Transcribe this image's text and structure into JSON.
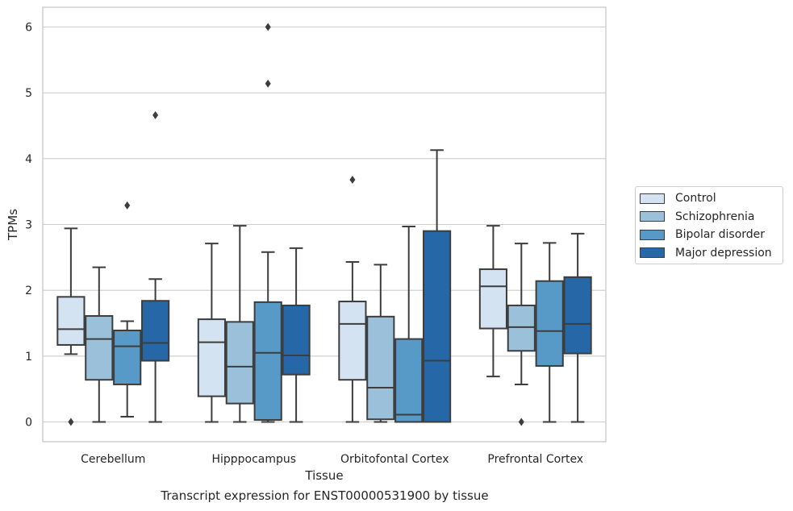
{
  "chart_data": {
    "type": "boxplot",
    "caption": "Transcript expression for ENST00000531900 by tissue",
    "xlabel": "Tissue",
    "ylabel": "TPMs",
    "ylim": [
      -0.3,
      6.3
    ],
    "yticks": [
      0,
      1,
      2,
      3,
      4,
      5,
      6
    ],
    "grid": true,
    "legend_position": "right",
    "categories": [
      "Cerebellum",
      "Hipppocampus",
      "Orbitofontal Cortex",
      "Prefrontal Cortex"
    ],
    "series": [
      {
        "name": "Control",
        "color": "#d4e3f2",
        "boxes": [
          {
            "whislo": 1.03,
            "q1": 1.17,
            "med": 1.41,
            "q3": 1.9,
            "whishi": 2.94,
            "fliers": [
              0.0
            ]
          },
          {
            "whislo": 0.0,
            "q1": 0.39,
            "med": 1.21,
            "q3": 1.56,
            "whishi": 2.71,
            "fliers": []
          },
          {
            "whislo": 0.0,
            "q1": 0.64,
            "med": 1.49,
            "q3": 1.83,
            "whishi": 2.43,
            "fliers": [
              3.68
            ]
          },
          {
            "whislo": 0.69,
            "q1": 1.42,
            "med": 2.06,
            "q3": 2.32,
            "whishi": 2.98,
            "fliers": []
          }
        ]
      },
      {
        "name": "Schizophrenia",
        "color": "#9ac0da",
        "boxes": [
          {
            "whislo": 0.0,
            "q1": 0.64,
            "med": 1.26,
            "q3": 1.61,
            "whishi": 2.35,
            "fliers": []
          },
          {
            "whislo": 0.0,
            "q1": 0.28,
            "med": 0.84,
            "q3": 1.52,
            "whishi": 2.98,
            "fliers": []
          },
          {
            "whislo": 0.0,
            "q1": 0.04,
            "med": 0.52,
            "q3": 1.6,
            "whishi": 2.39,
            "fliers": []
          },
          {
            "whislo": 0.57,
            "q1": 1.08,
            "med": 1.44,
            "q3": 1.77,
            "whishi": 2.71,
            "fliers": [
              0.0
            ]
          }
        ]
      },
      {
        "name": "Bipolar disorder",
        "color": "#5799c7",
        "boxes": [
          {
            "whislo": 0.08,
            "q1": 0.57,
            "med": 1.15,
            "q3": 1.39,
            "whishi": 1.53,
            "fliers": [
              3.29
            ]
          },
          {
            "whislo": 0.0,
            "q1": 0.03,
            "med": 1.05,
            "q3": 1.82,
            "whishi": 2.58,
            "fliers": [
              6.0,
              5.14
            ]
          },
          {
            "whislo": 0.0,
            "q1": 0.0,
            "med": 0.11,
            "q3": 1.26,
            "whishi": 2.97,
            "fliers": []
          },
          {
            "whislo": 0.0,
            "q1": 0.85,
            "med": 1.38,
            "q3": 2.14,
            "whishi": 2.72,
            "fliers": []
          }
        ]
      },
      {
        "name": "Major depression",
        "color": "#2668a7",
        "boxes": [
          {
            "whislo": 0.0,
            "q1": 0.93,
            "med": 1.2,
            "q3": 1.84,
            "whishi": 2.17,
            "fliers": [
              4.66
            ]
          },
          {
            "whislo": 0.0,
            "q1": 0.72,
            "med": 1.01,
            "q3": 1.77,
            "whishi": 2.64,
            "fliers": []
          },
          {
            "whislo": 0.0,
            "q1": 0.0,
            "med": 0.93,
            "q3": 2.9,
            "whishi": 4.13,
            "fliers": []
          },
          {
            "whislo": 0.0,
            "q1": 1.04,
            "med": 1.49,
            "q3": 2.2,
            "whishi": 2.86,
            "fliers": []
          }
        ]
      }
    ]
  }
}
